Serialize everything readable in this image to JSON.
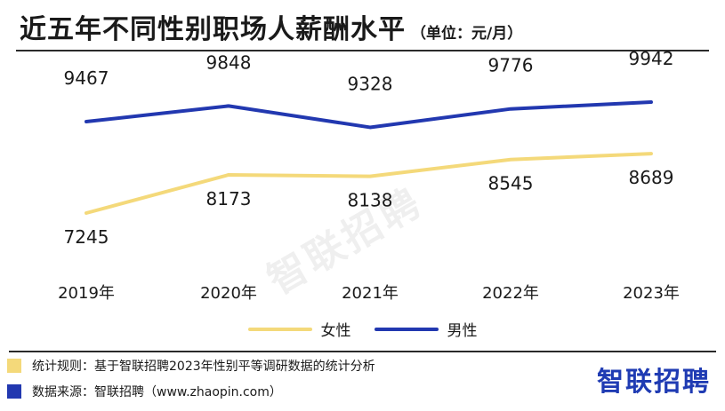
{
  "title": "近五年不同性别职场人薪酬水平",
  "unit": "（单位：元/月）",
  "watermark": "智联招聘",
  "legend": {
    "female": "女性",
    "male": "男性"
  },
  "notes": {
    "rule": "统计规则：基于智联招聘2023年性别平等调研数据的统计分析",
    "source": "数据来源：智联招聘（www.zhaopin.com）"
  },
  "logo": "智联招聘",
  "colors": {
    "female": "#f4d97a",
    "male": "#2238b0",
    "text": "#1a1a1a"
  },
  "chart_data": {
    "type": "line",
    "categories": [
      "2019年",
      "2020年",
      "2021年",
      "2022年",
      "2023年"
    ],
    "series": [
      {
        "name": "男性",
        "color": "#2238b0",
        "values": [
          9467,
          9848,
          9328,
          9776,
          9942
        ]
      },
      {
        "name": "女性",
        "color": "#f4d97a",
        "values": [
          7245,
          8173,
          8138,
          8545,
          8689
        ]
      }
    ],
    "data_labels": true,
    "legend_position": "bottom",
    "grid": false
  }
}
